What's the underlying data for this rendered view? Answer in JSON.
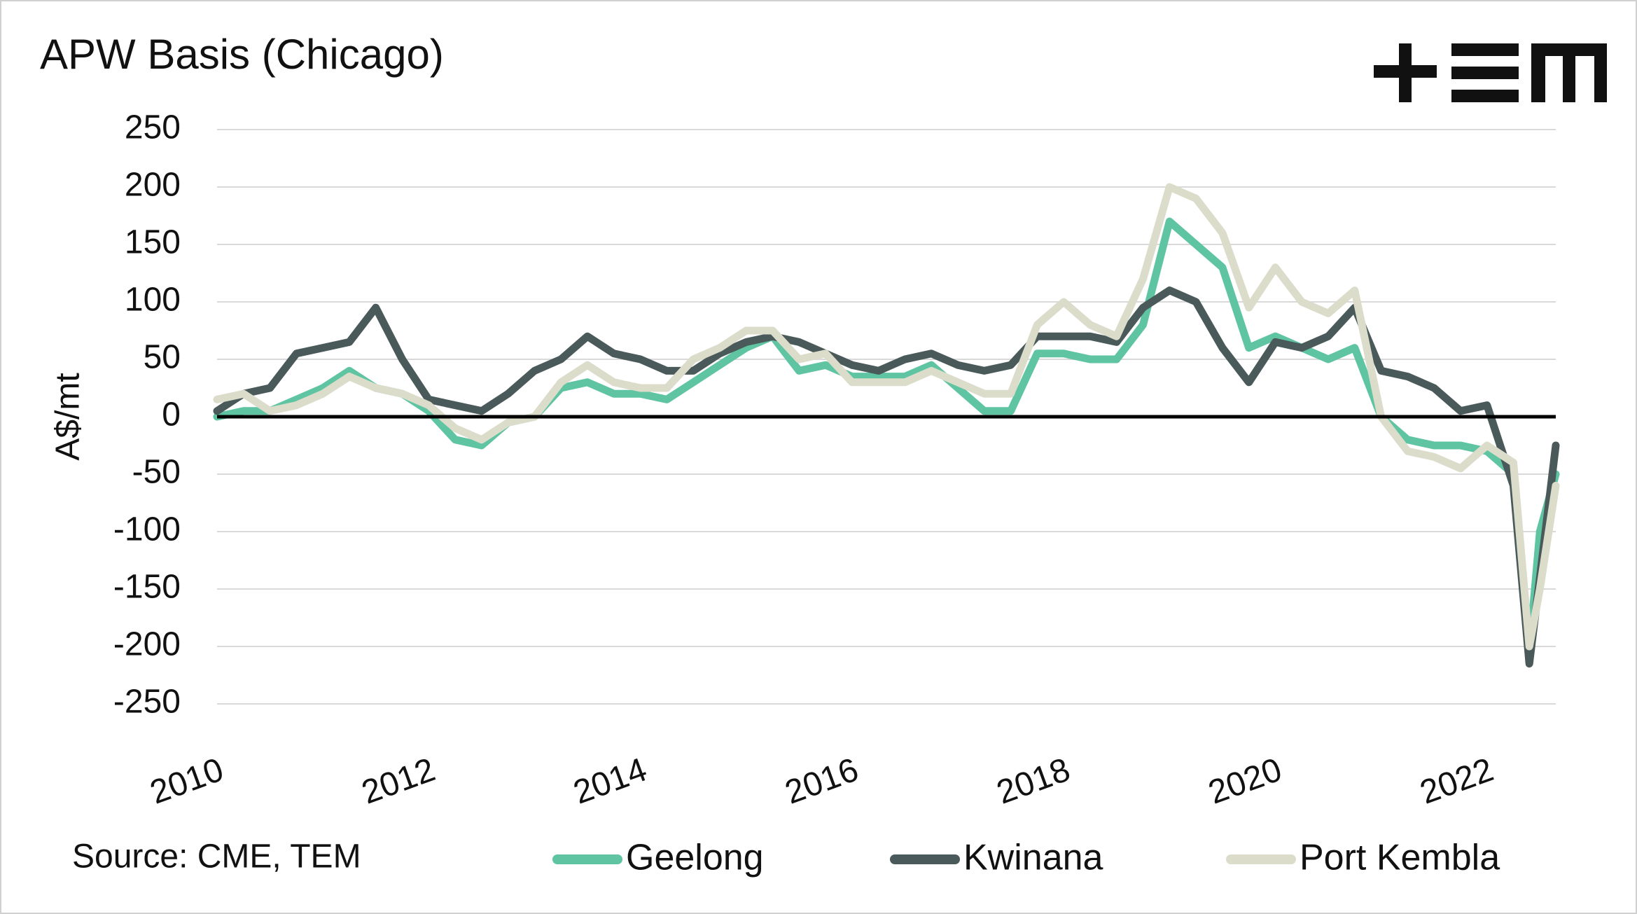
{
  "chart_data": {
    "type": "line",
    "title": "APW Basis (Chicago)",
    "y_label": "A$/mt",
    "source": "Source: CME, TEM",
    "x": [
      2010,
      2010.25,
      2010.5,
      2010.75,
      2011,
      2011.25,
      2011.5,
      2011.75,
      2012,
      2012.25,
      2012.5,
      2012.75,
      2013,
      2013.25,
      2013.5,
      2013.75,
      2014,
      2014.25,
      2014.5,
      2014.75,
      2015,
      2015.25,
      2015.5,
      2015.75,
      2016,
      2016.25,
      2016.5,
      2016.75,
      2017,
      2017.25,
      2017.5,
      2017.75,
      2018,
      2018.25,
      2018.5,
      2018.75,
      2019,
      2019.25,
      2019.5,
      2019.75,
      2020,
      2020.25,
      2020.5,
      2020.75,
      2021,
      2021.25,
      2021.5,
      2021.75,
      2022,
      2022.25,
      2022.4,
      2022.5,
      2022.65
    ],
    "series": [
      {
        "name": "Geelong",
        "color": "#5ec4a1",
        "values": [
          0,
          5,
          5,
          15,
          25,
          40,
          25,
          20,
          5,
          -20,
          -25,
          -5,
          0,
          25,
          30,
          20,
          20,
          15,
          30,
          45,
          60,
          70,
          40,
          45,
          35,
          35,
          35,
          45,
          25,
          5,
          5,
          55,
          55,
          50,
          50,
          80,
          170,
          150,
          130,
          60,
          70,
          60,
          50,
          60,
          0,
          -20,
          -25,
          -25,
          -30,
          -50,
          -205,
          -100,
          -50
        ]
      },
      {
        "name": "Kwinana",
        "color": "#4a5959",
        "values": [
          5,
          20,
          25,
          55,
          60,
          65,
          95,
          50,
          15,
          10,
          5,
          20,
          40,
          50,
          70,
          55,
          50,
          40,
          40,
          55,
          65,
          70,
          65,
          55,
          45,
          40,
          50,
          55,
          45,
          40,
          45,
          70,
          70,
          70,
          65,
          95,
          110,
          100,
          60,
          30,
          65,
          60,
          70,
          95,
          40,
          35,
          25,
          5,
          10,
          -60,
          -215,
          -140,
          -25
        ]
      },
      {
        "name": "Port Kembla",
        "color": "#dcdccb",
        "values": [
          15,
          20,
          5,
          10,
          20,
          35,
          25,
          20,
          10,
          -10,
          -20,
          -5,
          0,
          30,
          45,
          30,
          25,
          25,
          50,
          60,
          75,
          75,
          50,
          55,
          30,
          30,
          30,
          40,
          30,
          20,
          20,
          80,
          100,
          80,
          70,
          120,
          200,
          190,
          160,
          95,
          130,
          100,
          90,
          110,
          0,
          -30,
          -35,
          -45,
          -25,
          -40,
          -200,
          -150,
          -60
        ]
      }
    ],
    "xlim": [
      2010,
      2022.65
    ],
    "xticks": [
      2010,
      2012,
      2014,
      2016,
      2018,
      2020,
      2022
    ],
    "ylim": [
      -250,
      250
    ],
    "yticks": [
      -250,
      -200,
      -150,
      -100,
      -50,
      0,
      50,
      100,
      150,
      200,
      250
    ],
    "grid": true,
    "zero_line": true,
    "legend": "bottom"
  }
}
